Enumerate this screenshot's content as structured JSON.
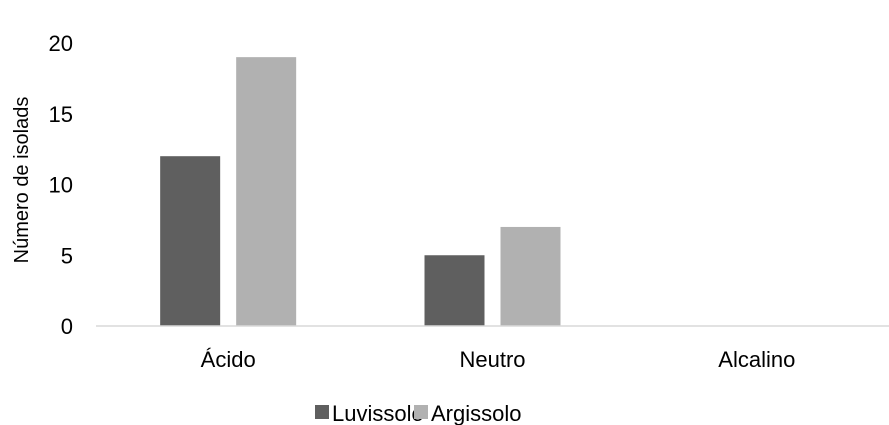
{
  "chart_data": {
    "type": "bar",
    "title": "",
    "xlabel": "",
    "ylabel": "Número de isolads",
    "categories": [
      "Ácido",
      "Neutro",
      "Alcalino"
    ],
    "series": [
      {
        "name": "Luvissolo",
        "values": [
          12,
          5,
          0
        ],
        "color": "#5f5f5f"
      },
      {
        "name": "Argissolo",
        "values": [
          19,
          7,
          0
        ],
        "color": "#b1b1b1"
      }
    ],
    "ylim": [
      0,
      20
    ],
    "yticks": [
      0,
      5,
      10,
      15,
      20
    ],
    "grid": false,
    "legend_position": "bottom"
  }
}
